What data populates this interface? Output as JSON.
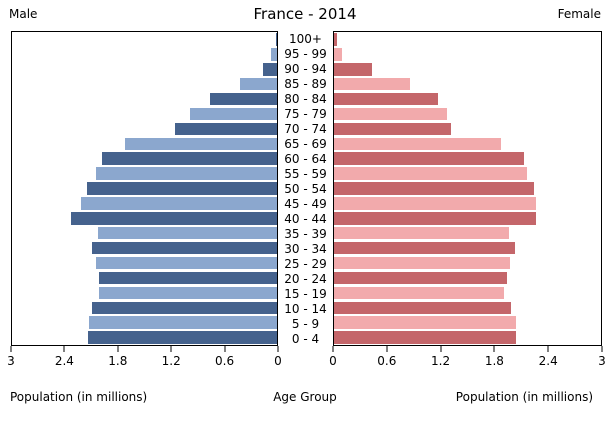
{
  "header": {
    "male_label": "Male",
    "title": "France - 2014",
    "female_label": "Female"
  },
  "footer": {
    "left_axis_label": "Population (in millions)",
    "center_label": "Age Group",
    "right_axis_label": "Population (in millions)"
  },
  "colors": {
    "male_dark": "#45628D",
    "male_light": "#8BA7CE",
    "female_dark": "#C4666A",
    "female_light": "#F2AAAC",
    "axis": "#000000",
    "background": "#ffffff"
  },
  "axes": {
    "male_tick_labels": [
      "3",
      "2.4",
      "1.8",
      "1.2",
      "0.6",
      "0"
    ],
    "female_tick_labels": [
      "0",
      "0.6",
      "1.2",
      "1.8",
      "2.4",
      "3"
    ],
    "max_value_millions": 3
  },
  "chart_data": {
    "type": "bar",
    "subtype": "population-pyramid",
    "title": "France - 2014",
    "xlabel": "Population (in millions)",
    "center_axis_label": "Age Group",
    "xlim": [
      0,
      3
    ],
    "x_tick_step": 0.6,
    "grid": false,
    "legend": "none",
    "units": "millions",
    "categories_top_to_bottom": [
      "100+",
      "95 - 99",
      "90 - 94",
      "85 - 89",
      "80 - 84",
      "75 - 79",
      "70 - 74",
      "65 - 69",
      "60 - 64",
      "55 - 59",
      "50 - 54",
      "45 - 49",
      "40 - 44",
      "35 - 39",
      "30 - 34",
      "25 - 29",
      "20 - 24",
      "15 - 19",
      "10 - 14",
      "5 - 9",
      "0 - 4"
    ],
    "series": [
      {
        "name": "Male",
        "side": "left",
        "color_dark": "#45628D",
        "color_light": "#8BA7CE",
        "values_top_to_bottom": [
          0.01,
          0.07,
          0.16,
          0.42,
          0.76,
          0.99,
          1.15,
          1.72,
          1.98,
          2.05,
          2.15,
          2.22,
          2.33,
          2.03,
          2.1,
          2.05,
          2.02,
          2.01,
          2.1,
          2.13,
          2.14
        ]
      },
      {
        "name": "Female",
        "side": "right",
        "color_dark": "#C4666A",
        "color_light": "#F2AAAC",
        "values_top_to_bottom": [
          0.03,
          0.09,
          0.43,
          0.85,
          1.17,
          1.27,
          1.32,
          1.88,
          2.13,
          2.17,
          2.25,
          2.27,
          2.27,
          1.97,
          2.03,
          1.98,
          1.94,
          1.91,
          1.99,
          2.04,
          2.04
        ]
      }
    ]
  }
}
